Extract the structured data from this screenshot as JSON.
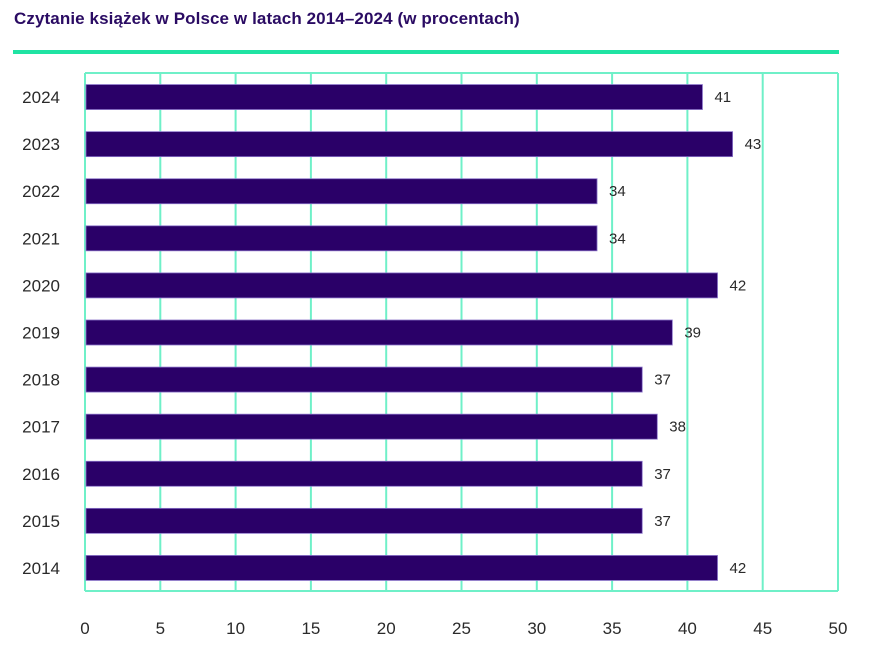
{
  "chart_data": {
    "type": "bar",
    "orientation": "horizontal",
    "title": "Czytanie książek w Polsce w latach 2014–2024 (w procentach)",
    "xlabel": "",
    "ylabel": "",
    "categories": [
      "2024",
      "2023",
      "2022",
      "2021",
      "2020",
      "2019",
      "2018",
      "2017",
      "2016",
      "2015",
      "2014"
    ],
    "values": [
      41,
      43,
      34,
      34,
      42,
      39,
      37,
      38,
      37,
      37,
      42
    ],
    "data_labels": [
      "41",
      "43",
      "34",
      "34",
      "42",
      "39",
      "37",
      "38",
      "37",
      "37",
      "42"
    ],
    "xlim": [
      0,
      50
    ],
    "xticks": [
      0,
      5,
      10,
      15,
      20,
      25,
      30,
      35,
      40,
      45,
      50
    ],
    "xtick_labels": [
      "0",
      "5",
      "10",
      "15",
      "20",
      "25",
      "30",
      "35",
      "40",
      "45",
      "50"
    ],
    "grid": true,
    "legend": "none",
    "colors": {
      "bar": "#2a0068",
      "bar_edge": "#8a73c9",
      "grid": "#6ff0c8",
      "title": "#2a0b63",
      "accent_rule": "#1fe3a3"
    }
  }
}
